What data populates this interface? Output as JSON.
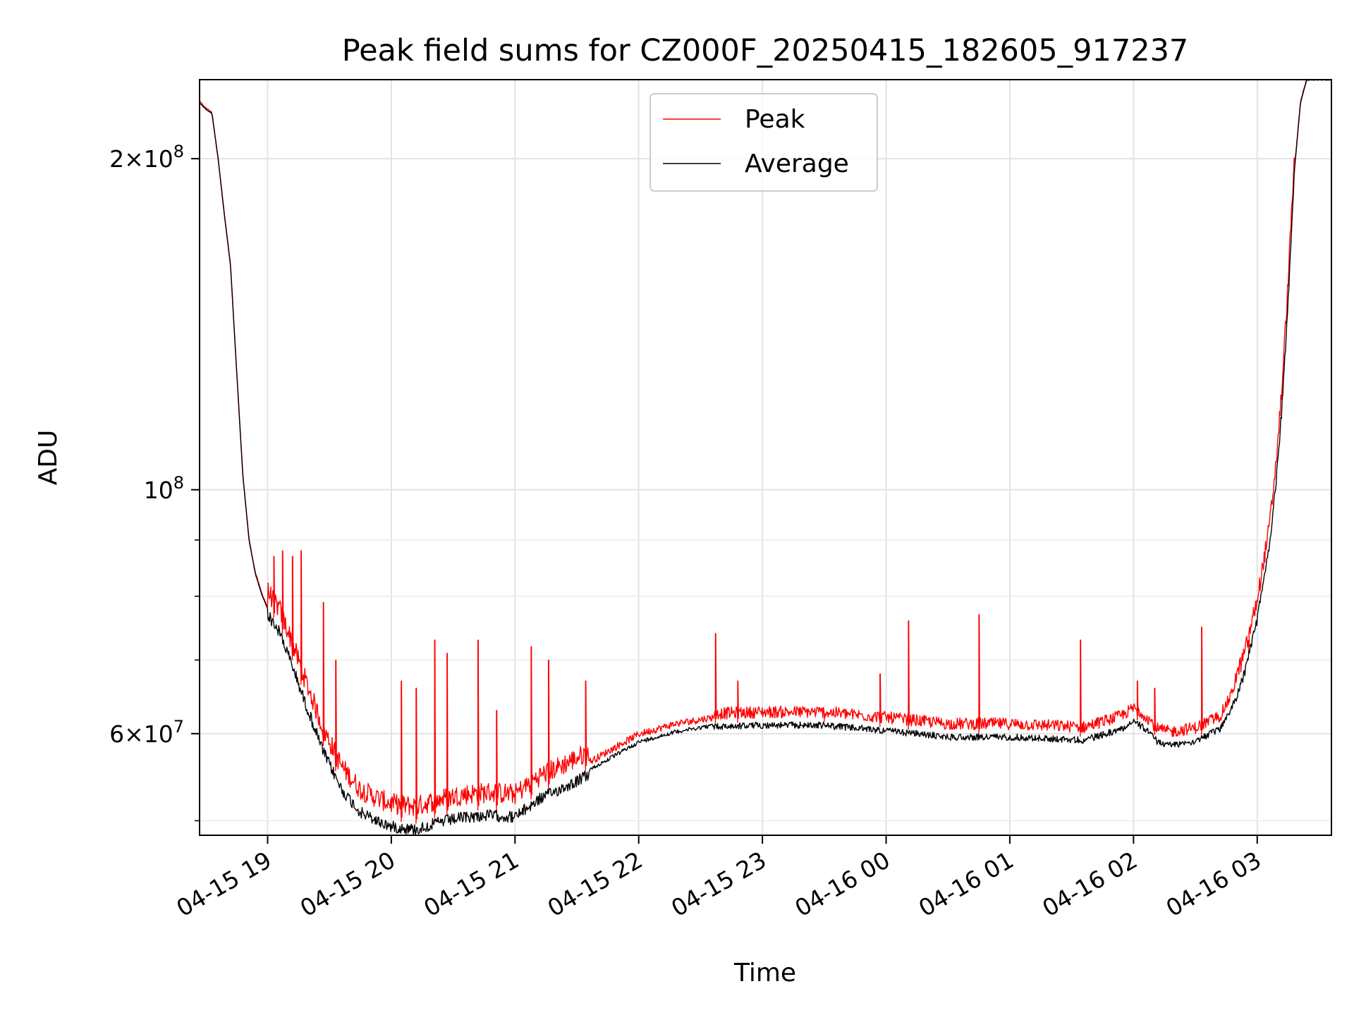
{
  "chart_data": {
    "type": "line",
    "title": "Peak field sums for CZ000F_20250415_182605_917237",
    "xlabel": "Time",
    "ylabel": "ADU",
    "yscale": "log",
    "ylim": [
      48500000,
      236000000
    ],
    "xlim_hours": [
      18.45,
      27.6
    ],
    "grid": true,
    "legend": {
      "location": "upper center",
      "entries": [
        "Peak",
        "Average"
      ]
    },
    "x_ticks": [
      {
        "hour": 19,
        "label": "04-15 19"
      },
      {
        "hour": 20,
        "label": "04-15 20"
      },
      {
        "hour": 21,
        "label": "04-15 21"
      },
      {
        "hour": 22,
        "label": "04-15 22"
      },
      {
        "hour": 23,
        "label": "04-15 23"
      },
      {
        "hour": 24,
        "label": "04-16 00"
      },
      {
        "hour": 25,
        "label": "04-16 01"
      },
      {
        "hour": 26,
        "label": "04-16 02"
      },
      {
        "hour": 27,
        "label": "04-16 03"
      }
    ],
    "y_major_ticks": [
      {
        "value": 60000000,
        "base": "6",
        "exp": "7"
      },
      {
        "value": 100000000,
        "base": "",
        "exp": "8"
      },
      {
        "value": 200000000,
        "base": "2",
        "exp": "8"
      }
    ],
    "y_minor_ticks": [
      50000000,
      70000000,
      80000000,
      90000000
    ],
    "series": [
      {
        "name": "Average",
        "color": "#000000",
        "hours": [
          18.45,
          18.5,
          18.55,
          18.6,
          18.65,
          18.7,
          18.75,
          18.8,
          18.85,
          18.9,
          18.95,
          19.0,
          19.1,
          19.2,
          19.3,
          19.45,
          19.6,
          19.75,
          19.9,
          20.0,
          20.2,
          20.4,
          20.6,
          20.8,
          21.0,
          21.2,
          21.5,
          21.8,
          22.0,
          22.3,
          22.6,
          23.0,
          23.5,
          24.0,
          24.5,
          25.0,
          25.3,
          25.6,
          25.9,
          26.0,
          26.1,
          26.2,
          26.3,
          26.5,
          26.7,
          26.8,
          26.9,
          27.0,
          27.1,
          27.15,
          27.2,
          27.25,
          27.3,
          27.35,
          27.4
        ],
        "values": [
          225000000,
          222000000,
          220000000,
          200000000,
          178000000,
          160000000,
          128000000,
          103000000,
          90000000,
          84000000,
          80500000,
          78000000,
          75000000,
          70000000,
          65000000,
          58500000,
          54000000,
          51500000,
          50500000,
          50000000,
          49700000,
          50500000,
          51000000,
          51200000,
          51000000,
          53000000,
          55000000,
          57500000,
          59200000,
          60500000,
          61300000,
          61500000,
          61500000,
          60800000,
          60000000,
          60000000,
          59800000,
          59600000,
          61000000,
          62000000,
          61000000,
          59300000,
          59000000,
          59500000,
          61000000,
          64000000,
          69000000,
          77000000,
          90000000,
          102000000,
          120000000,
          150000000,
          195000000,
          225000000,
          236000000
        ]
      },
      {
        "name": "Peak",
        "color": "#ff0000",
        "spikes": [
          {
            "hour": 19.05,
            "value": 87000000
          },
          {
            "hour": 19.12,
            "value": 88000000
          },
          {
            "hour": 19.2,
            "value": 87000000
          },
          {
            "hour": 19.27,
            "value": 88000000
          },
          {
            "hour": 19.45,
            "value": 79000000
          },
          {
            "hour": 19.55,
            "value": 70000000
          },
          {
            "hour": 20.08,
            "value": 67000000
          },
          {
            "hour": 20.2,
            "value": 66000000
          },
          {
            "hour": 20.35,
            "value": 73000000
          },
          {
            "hour": 20.45,
            "value": 71000000
          },
          {
            "hour": 20.7,
            "value": 73000000
          },
          {
            "hour": 20.85,
            "value": 63000000
          },
          {
            "hour": 21.13,
            "value": 72000000
          },
          {
            "hour": 21.27,
            "value": 70000000
          },
          {
            "hour": 21.57,
            "value": 67000000
          },
          {
            "hour": 22.62,
            "value": 74000000
          },
          {
            "hour": 22.8,
            "value": 67000000
          },
          {
            "hour": 23.5,
            "value": 62000000
          },
          {
            "hour": 23.95,
            "value": 68000000
          },
          {
            "hour": 24.18,
            "value": 76000000
          },
          {
            "hour": 24.75,
            "value": 77000000
          },
          {
            "hour": 25.57,
            "value": 73000000
          },
          {
            "hour": 26.03,
            "value": 67000000
          },
          {
            "hour": 26.17,
            "value": 66000000
          },
          {
            "hour": 26.55,
            "value": 75000000
          },
          {
            "hour": 26.93,
            "value": 73000000
          }
        ]
      }
    ]
  }
}
